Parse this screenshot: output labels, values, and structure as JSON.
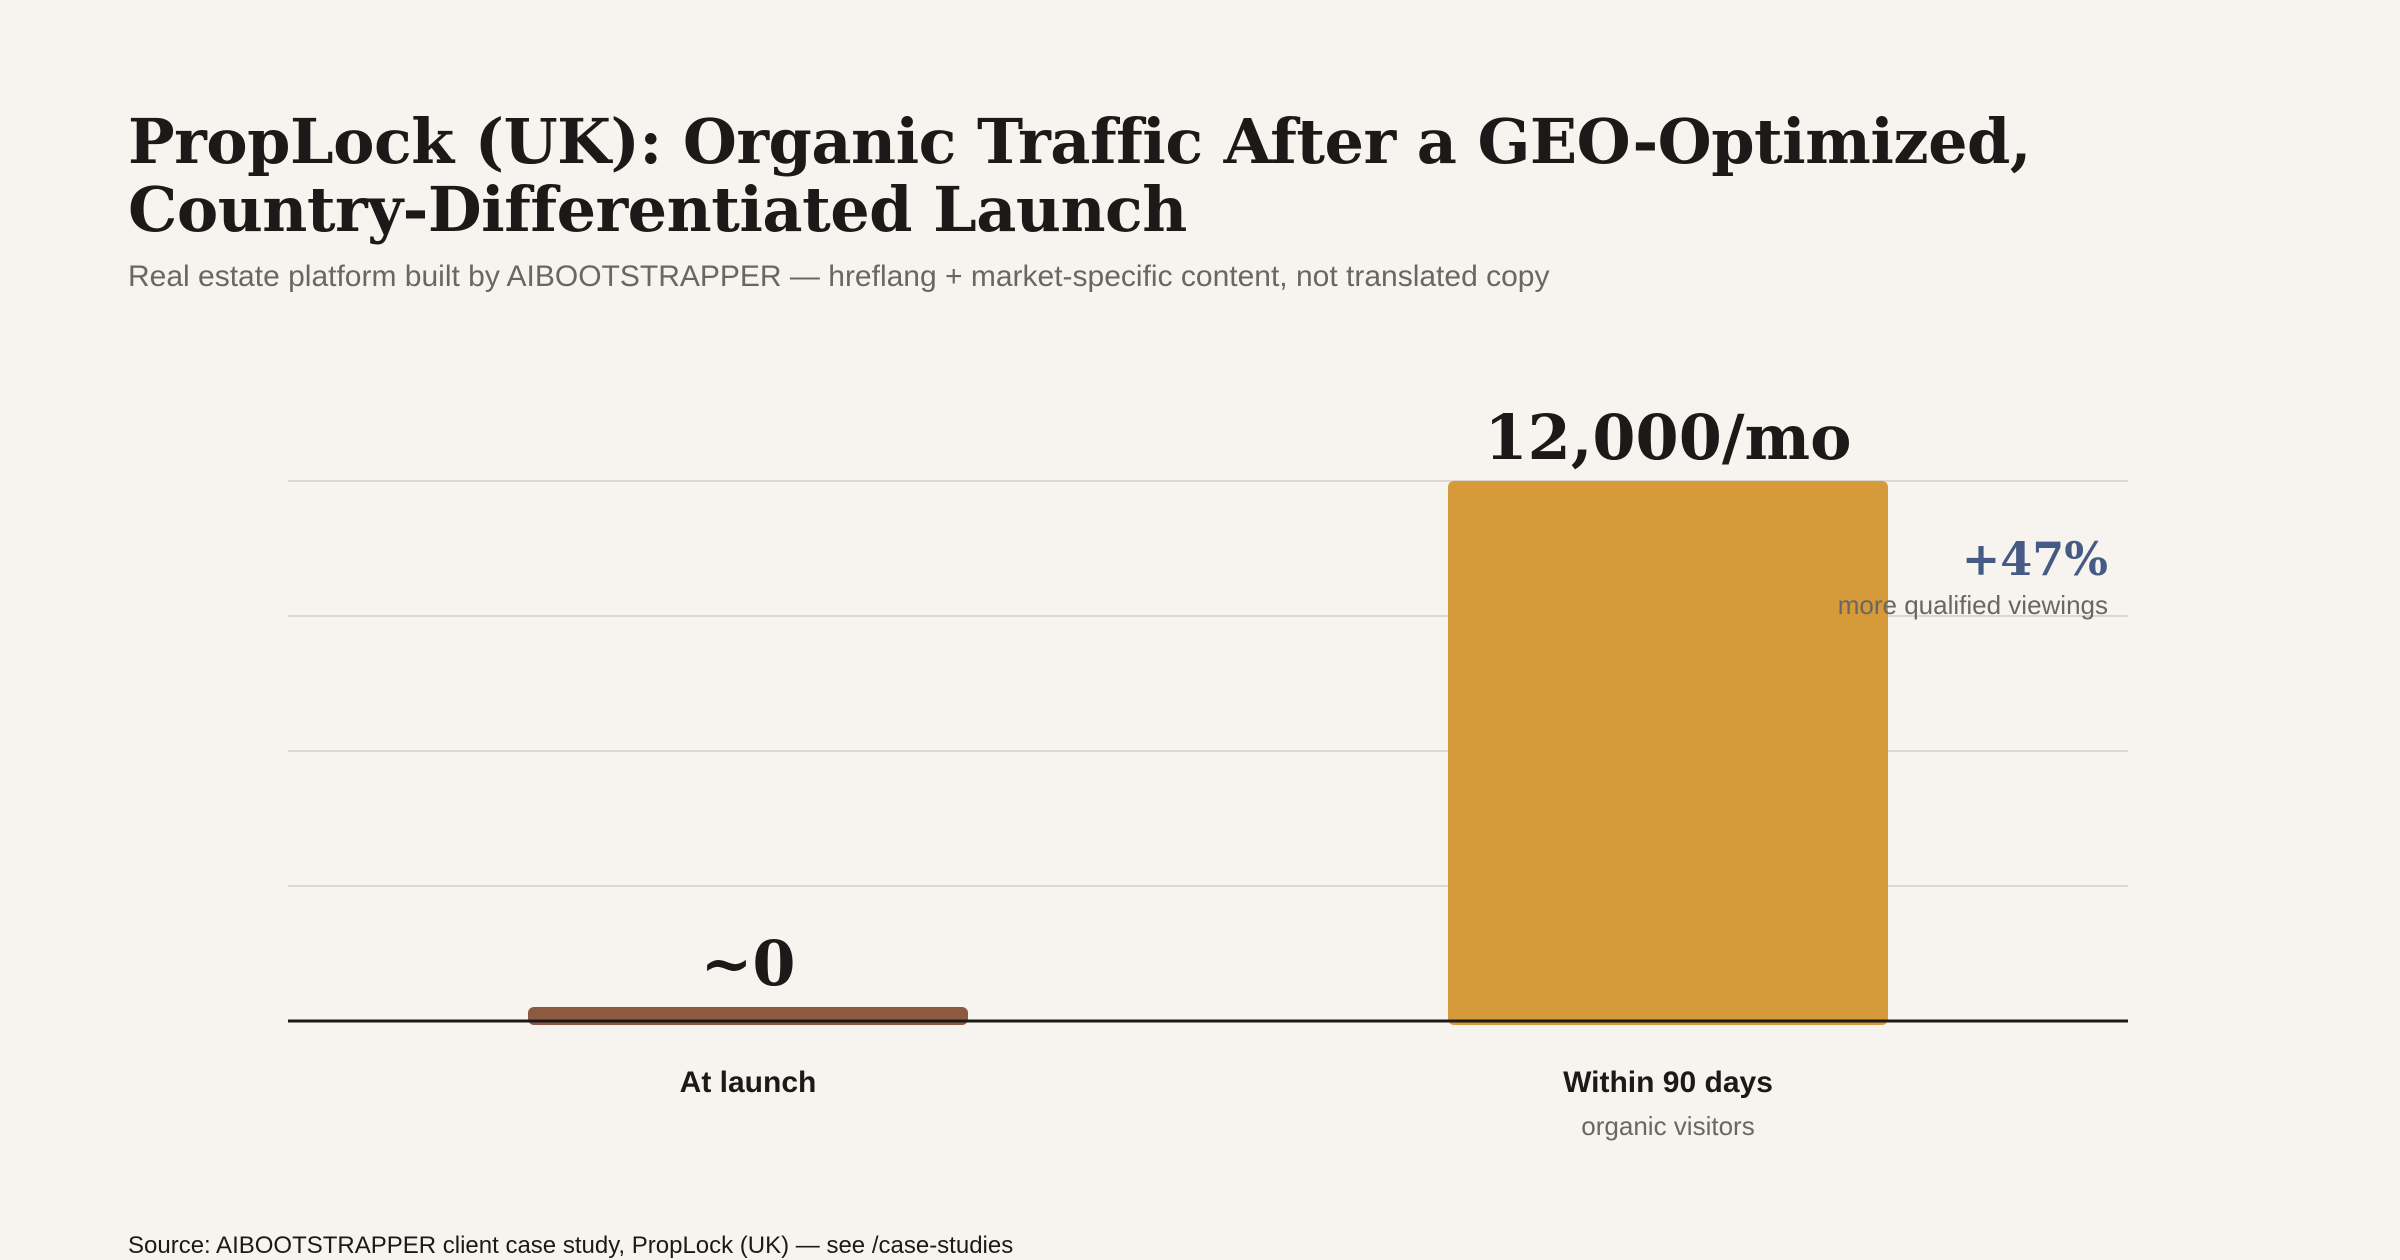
{
  "header": {
    "title": "PropLock (UK): Organic Traffic After a GEO-Optimized, Country-Differentiated Launch",
    "subtitle": "Real estate platform built by AIBOOTSTRAPPER — hreflang + market-specific content, not translated copy"
  },
  "footer": {
    "source": "Source: AIBOOTSTRAPPER client case study, PropLock (UK) — see /case-studies"
  },
  "chart_data": {
    "type": "bar",
    "title": "PropLock (UK): Organic Traffic After a GEO-Optimized, Country-Differentiated Launch",
    "subtitle": "Real estate platform built by AIBOOTSTRAPPER — hreflang + market-specific content, not translated copy",
    "categories": [
      "At launch",
      "Within 90 days"
    ],
    "category_sublabels": [
      "",
      "organic visitors"
    ],
    "values": [
      0,
      12000
    ],
    "data_labels": [
      "~0",
      "12,000/mo"
    ],
    "bar_colors": [
      "#8b5a40",
      "#d69a3a"
    ],
    "ylim": [
      0,
      12000
    ],
    "grid": true,
    "y_ticks_shown": false,
    "annotation": {
      "value": "+47%",
      "text": "more qualified viewings",
      "color": "#455a85"
    },
    "xlabel": "",
    "ylabel": ""
  }
}
